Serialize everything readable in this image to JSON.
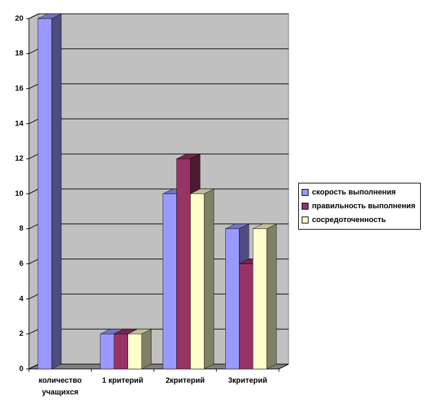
{
  "chart_data": {
    "type": "bar3d",
    "categories": [
      "количество учащихся",
      "1 критерий",
      "2критерий",
      "3критерий"
    ],
    "series": [
      {
        "name": "скорость выполнения",
        "color": "#9999ff",
        "values": [
          20,
          2,
          10,
          8
        ]
      },
      {
        "name": "правильность выполнения",
        "color": "#993366",
        "values": [
          null,
          2,
          12,
          6
        ]
      },
      {
        "name": "сосредоточенность",
        "color": "#ffffcc",
        "values": [
          null,
          2,
          10,
          8
        ]
      }
    ],
    "ylim": [
      0,
      20
    ],
    "yticks": [
      0,
      2,
      4,
      6,
      8,
      10,
      12,
      14,
      16,
      18,
      20
    ],
    "grid": true,
    "legend": "right",
    "wall_color": "#c0c0c0"
  }
}
